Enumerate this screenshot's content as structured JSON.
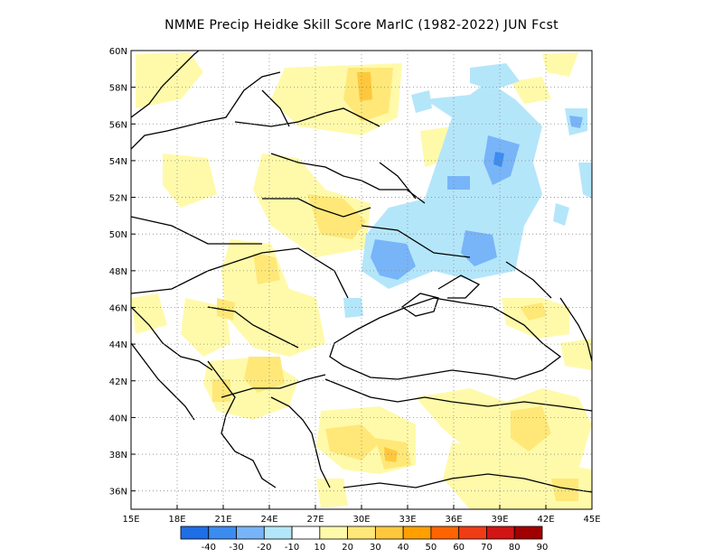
{
  "title": "NMME Precip Heidke Skill Score MarIC (1982-2022) JUN Fcst",
  "map": {
    "lon_range": [
      15,
      45
    ],
    "lat_range": [
      35,
      60
    ],
    "x_ticks": [
      "15E",
      "18E",
      "21E",
      "24E",
      "27E",
      "30E",
      "33E",
      "36E",
      "39E",
      "42E",
      "45E"
    ],
    "y_ticks": [
      "36N",
      "38N",
      "40N",
      "42N",
      "44N",
      "46N",
      "48N",
      "50N",
      "52N",
      "54N",
      "56N",
      "58N",
      "60N"
    ],
    "grid": true,
    "projection": "lat-lon"
  },
  "colorbar": {
    "labels": [
      "-40",
      "-30",
      "-20",
      "-10",
      "10",
      "20",
      "30",
      "40",
      "50",
      "60",
      "70",
      "80",
      "90"
    ],
    "colors": [
      "#1e6ee6",
      "#3c8cf0",
      "#78b4f8",
      "#b4e6fa",
      "#ffffff",
      "#fffaaa",
      "#ffe878",
      "#ffc83c",
      "#ffa000",
      "#ff6400",
      "#f03c14",
      "#d21414",
      "#a00000"
    ]
  }
}
